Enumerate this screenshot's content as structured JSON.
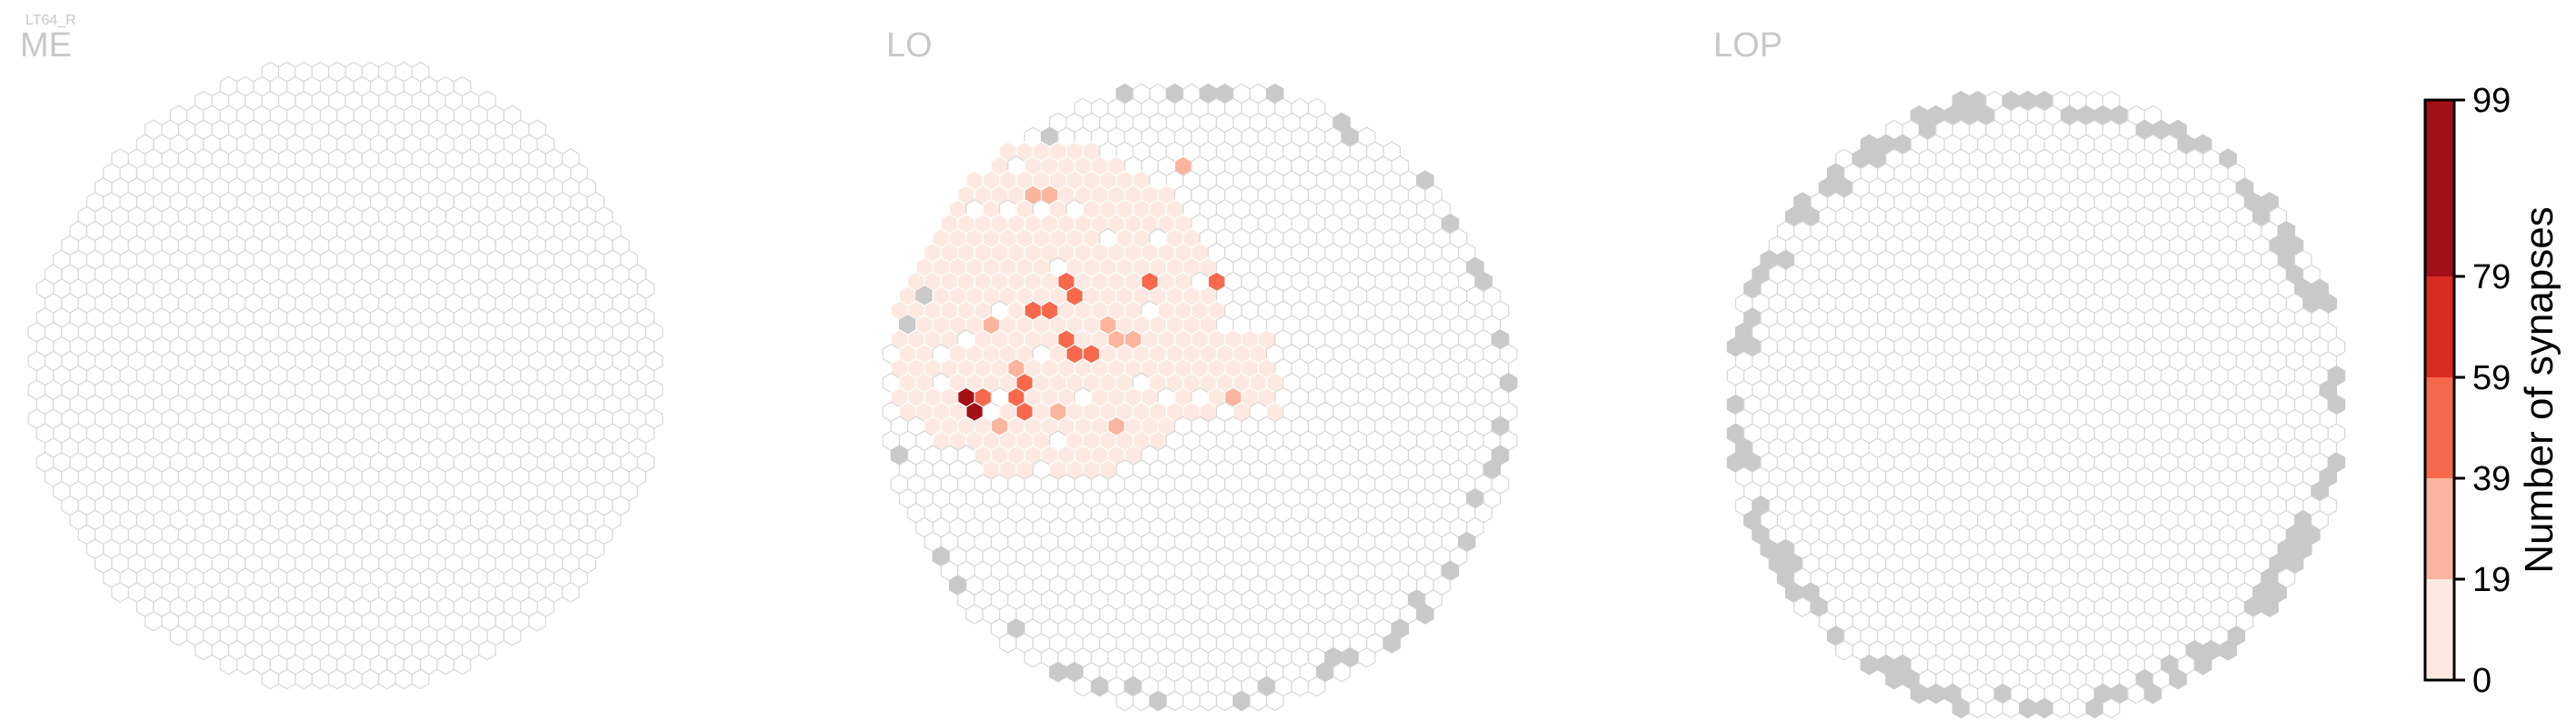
{
  "figure": {
    "cell_type": "LT64_R",
    "panels": [
      "ME",
      "LO",
      "LOP"
    ]
  },
  "colors": {
    "empty_fill": "#ffffff",
    "empty_stroke": "#d7d7d7",
    "no_column": "#c9c9c9",
    "bins": [
      "#fde9e1",
      "#fbb49d",
      "#f7684c",
      "#d92b23",
      "#a30f15"
    ]
  },
  "chart_data": {
    "type": "heatmap",
    "grid": "hexagonal",
    "colorbar": {
      "label": "Number of synapses",
      "ticks": [
        "0",
        "19",
        "39",
        "59",
        "79",
        "99"
      ],
      "bin_edges": [
        0,
        19,
        39,
        59,
        79,
        99
      ]
    },
    "regions": [
      {
        "name": "ME",
        "active_columns": 0
      },
      {
        "name": "LO",
        "bin_counts": {
          "0-19": 420,
          "19-39": 16,
          "39-59": 9,
          "59-79": 0,
          "79-99": 1
        },
        "max_value_cell": 99
      },
      {
        "name": "LOP",
        "active_columns": 0
      }
    ]
  }
}
